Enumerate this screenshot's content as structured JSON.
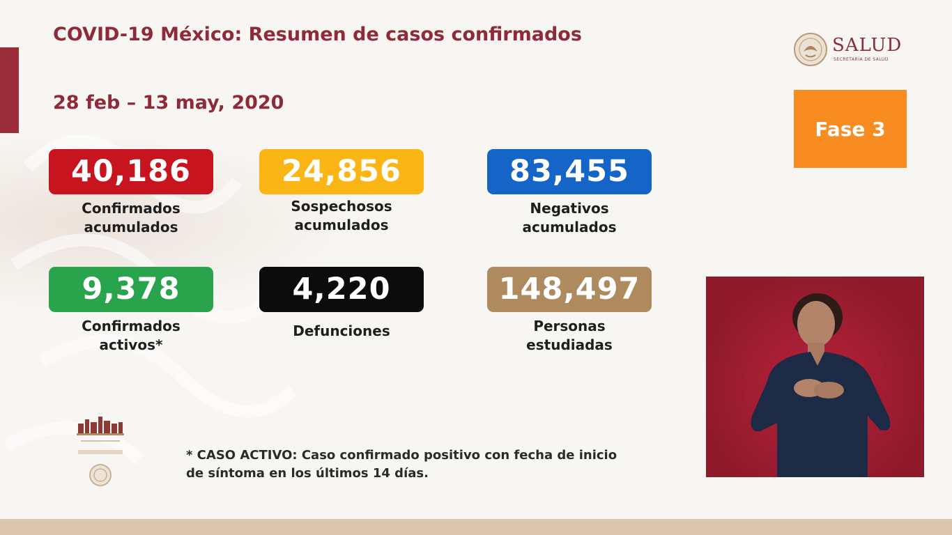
{
  "header": {
    "title": "COVID-19 México: Resumen de casos confirmados",
    "date_range": "28 feb – 13 may, 2020"
  },
  "logo": {
    "name": "SALUD",
    "subtitle": "SECRETARÍA DE SALUD"
  },
  "phase": {
    "label": "Fase 3",
    "color": "#f98c21"
  },
  "stats": [
    {
      "value": "40,186",
      "label_line1": "Confirmados",
      "label_line2": "acumulados",
      "color": "#c8141e"
    },
    {
      "value": "24,856",
      "label_line1": "Sospechosos",
      "label_line2": "acumulados",
      "color": "#fbb514"
    },
    {
      "value": "83,455",
      "label_line1": "Negativos",
      "label_line2": "acumulados",
      "color": "#1565c8"
    },
    {
      "value": "9,378",
      "label_line1": "Confirmados",
      "label_line2": "activos*",
      "color": "#2aa44c"
    },
    {
      "value": "4,220",
      "label_line1": "Defunciones",
      "label_line2": "",
      "color": "#0c0c0c"
    },
    {
      "value": "148,497",
      "label_line1": "Personas",
      "label_line2": "estudiadas",
      "color": "#ae8a5e"
    }
  ],
  "footnote": {
    "line1": "* CASO ACTIVO: Caso confirmado positivo con fecha de inicio",
    "line2": "de síntoma en los últimos 14 días."
  },
  "theme": {
    "title_color": "#8f2a3b",
    "accent_bar": "#9b2c3a",
    "bottom_band": "#dcc6ad"
  }
}
